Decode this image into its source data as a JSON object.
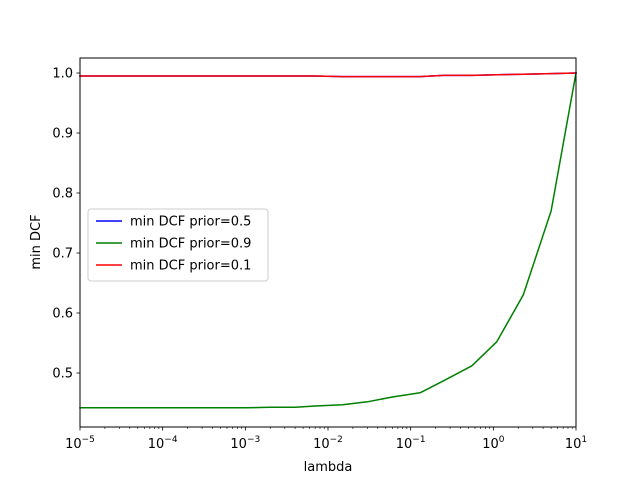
{
  "chart_data": {
    "type": "line",
    "title": "",
    "xlabel": "lambda",
    "ylabel": "min DCF",
    "xscale": "log",
    "xlim": [
      1e-05,
      10
    ],
    "ylim": [
      0.41,
      1.025
    ],
    "grid": false,
    "legend_placement": "center-left",
    "x_ticks": [
      {
        "value": 1e-05,
        "base": "10",
        "exp": "−5"
      },
      {
        "value": 0.0001,
        "base": "10",
        "exp": "−4"
      },
      {
        "value": 0.001,
        "base": "10",
        "exp": "−3"
      },
      {
        "value": 0.01,
        "base": "10",
        "exp": "−2"
      },
      {
        "value": 0.1,
        "base": "10",
        "exp": "−1"
      },
      {
        "value": 1,
        "base": "10",
        "exp": "0"
      },
      {
        "value": 10,
        "base": "10",
        "exp": "1"
      }
    ],
    "y_ticks": [
      0.5,
      0.6,
      0.7,
      0.8,
      0.9,
      1.0
    ],
    "y_tick_labels": [
      "0.5",
      "0.6",
      "0.7",
      "0.8",
      "0.9",
      "1.0"
    ],
    "x": [
      1e-05,
      2e-05,
      5e-05,
      0.0001,
      0.0002,
      0.0005,
      0.001,
      0.002,
      0.004,
      0.007,
      0.015,
      0.03,
      0.06,
      0.13,
      0.25,
      0.55,
      1.1,
      2.3,
      5,
      10
    ],
    "series": [
      {
        "name": "min DCF prior=0.5",
        "color": "#0000ff",
        "values": [
          0.995,
          0.995,
          0.995,
          0.995,
          0.995,
          0.995,
          0.995,
          0.995,
          0.995,
          0.995,
          0.994,
          0.994,
          0.994,
          0.994,
          0.996,
          0.996,
          0.997,
          0.998,
          0.999,
          1.0
        ]
      },
      {
        "name": "min DCF prior=0.9",
        "color": "#008000",
        "values": [
          0.442,
          0.442,
          0.442,
          0.442,
          0.442,
          0.442,
          0.442,
          0.443,
          0.443,
          0.445,
          0.447,
          0.452,
          0.46,
          0.467,
          0.487,
          0.512,
          0.552,
          0.63,
          0.77,
          1.0
        ]
      },
      {
        "name": "min DCF prior=0.1",
        "color": "#ff0000",
        "values": [
          0.995,
          0.995,
          0.995,
          0.995,
          0.995,
          0.995,
          0.995,
          0.995,
          0.995,
          0.995,
          0.994,
          0.994,
          0.994,
          0.994,
          0.996,
          0.996,
          0.997,
          0.998,
          0.999,
          1.0
        ]
      }
    ]
  }
}
